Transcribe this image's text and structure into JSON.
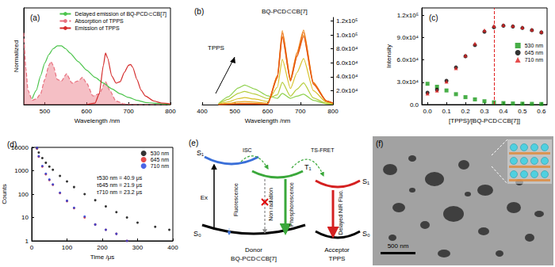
{
  "chart_data": [
    {
      "type": "line",
      "title": "(a)",
      "x_label": "Wavelength /nm",
      "y_label": "Normalized",
      "xlim": [
        450,
        800
      ],
      "xticks": [
        500,
        600,
        700,
        800
      ],
      "ylim": [
        0,
        1.35
      ],
      "tick_labels": "x",
      "legend": "upper right",
      "series": [
        {
          "name": "Delayed emission of BQ-PCD⊂CB[7]",
          "color": "#4cc44c",
          "line_style": "solid",
          "x": [
            470,
            480,
            490,
            500,
            510,
            520,
            530,
            540,
            550,
            560,
            580,
            600,
            620,
            640,
            660,
            680,
            700,
            720,
            740,
            760,
            780,
            800
          ],
          "values": [
            0.08,
            0.2,
            0.4,
            0.58,
            0.7,
            0.78,
            0.82,
            0.82,
            0.78,
            0.72,
            0.6,
            0.48,
            0.38,
            0.3,
            0.22,
            0.15,
            0.1,
            0.06,
            0.03,
            0.02,
            0.01,
            0.0
          ]
        },
        {
          "name": "Absorption of TPPS",
          "type": "area",
          "color": "#e8707e",
          "line_style": "dashed",
          "x": [
            450,
            455,
            460,
            470,
            480,
            490,
            500,
            510,
            515,
            520,
            530,
            540,
            552,
            565,
            580,
            590,
            600,
            615,
            630,
            645,
            655,
            670,
            690,
            720,
            800
          ],
          "values": [
            1.0,
            0.5,
            0.2,
            0.06,
            0.08,
            0.15,
            0.35,
            0.55,
            0.6,
            0.55,
            0.35,
            0.33,
            0.43,
            0.3,
            0.33,
            0.38,
            0.3,
            0.12,
            0.15,
            0.32,
            0.2,
            0.05,
            0.01,
            0,
            0
          ]
        },
        {
          "name": "Emission of TPPS",
          "color": "#d42a2a",
          "line_style": "solid",
          "x": [
            600,
            620,
            630,
            640,
            645,
            650,
            660,
            670,
            680,
            690,
            700,
            705,
            710,
            720,
            730,
            740,
            760,
            780,
            800
          ],
          "values": [
            0,
            0.02,
            0.15,
            0.55,
            0.72,
            0.65,
            0.4,
            0.3,
            0.32,
            0.45,
            0.55,
            0.56,
            0.52,
            0.35,
            0.2,
            0.12,
            0.05,
            0.02,
            0.01
          ]
        }
      ]
    },
    {
      "type": "line",
      "title": "(b)",
      "x_label": "Wavelength /nm",
      "annotations": [
        "BQ-PCD⊂CB[7]",
        "TPPS"
      ],
      "x": [
        450,
        480,
        510,
        530,
        560,
        600,
        630,
        645,
        670,
        690,
        710,
        740,
        780,
        800
      ],
      "xlim": [
        400,
        800
      ],
      "xticks": [
        400,
        500,
        600,
        700,
        800
      ],
      "ylim": [
        0,
        125000
      ],
      "yticks": [
        {
          "value": 20000,
          "label": "2.0x10⁴"
        },
        {
          "value": 40000,
          "label": "4.0x10⁴"
        },
        {
          "value": 60000,
          "label": "6.0x10⁴"
        },
        {
          "value": 80000,
          "label": "8.0x10⁴"
        },
        {
          "value": 100000,
          "label": "1.0x10⁵"
        },
        {
          "value": 120000,
          "label": "1.2x10⁵"
        }
      ],
      "series": [
        {
          "color": "#8fd14f",
          "values": [
            1400,
            11200,
            23800,
            28000,
            22400,
            12600,
            9000,
            16000,
            9000,
            12000,
            15000,
            6000,
            1200,
            500
          ]
        },
        {
          "color": "#b5cc3a",
          "values": [
            950,
            7600,
            16150,
            19000,
            15200,
            8550,
            14000,
            32000,
            12000,
            22000,
            31000,
            9500,
            1600,
            600
          ]
        },
        {
          "color": "#d6c22a",
          "values": [
            500,
            4000,
            8500,
            10000,
            8000,
            4500,
            25000,
            65000,
            23000,
            46000,
            66000,
            20000,
            3300,
            1300
          ]
        },
        {
          "color": "#e8a623",
          "values": [
            225,
            1800,
            3800,
            4500,
            3600,
            2000,
            38000,
            98000,
            34000,
            70000,
            100000,
            30000,
            5000,
            2000
          ]
        },
        {
          "color": "#ee8a1c",
          "values": [
            100,
            800,
            1700,
            2000,
            1600,
            900,
            42000,
            106000,
            37000,
            75000,
            107000,
            32000,
            5400,
            2100
          ]
        },
        {
          "color": "#ec6d18",
          "values": [
            60,
            480,
            1000,
            1200,
            960,
            540,
            41000,
            103000,
            36000,
            73000,
            104000,
            31000,
            5200,
            2000
          ]
        },
        {
          "color": "#e65212",
          "values": [
            40,
            320,
            680,
            800,
            640,
            360,
            39000,
            97000,
            34000,
            69000,
            98000,
            29000,
            4900,
            2000
          ]
        }
      ]
    },
    {
      "type": "scatter",
      "title": "(c)",
      "x_label": "[TPPS]/[BQ-PCD⊂CB[7]]",
      "y_label": "Intensity",
      "x": [
        0,
        0.05,
        0.1,
        0.15,
        0.2,
        0.25,
        0.3,
        0.35,
        0.4,
        0.45,
        0.5,
        0.55,
        0.6
      ],
      "xlim": [
        -0.03,
        0.63
      ],
      "xticks": [
        {
          "value": 0,
          "label": "0.0"
        },
        0.1,
        0.2,
        0.3,
        0.4,
        0.5,
        0.6
      ],
      "ylim": [
        0,
        130000
      ],
      "yticks": [
        {
          "value": 0,
          "label": "0.0"
        },
        {
          "value": 30000,
          "label": "3.0x10⁴"
        },
        {
          "value": 60000,
          "label": "6.0x10⁴"
        },
        {
          "value": 90000,
          "label": "9.0x10⁴"
        },
        {
          "value": 120000,
          "label": "1.2x10⁵"
        }
      ],
      "legend": "right",
      "vline": {
        "x": 0.35,
        "color": "#e02020",
        "line_style": "dashed"
      },
      "series": [
        {
          "name": "530 nm",
          "color": "#1a9a1a",
          "marker": "square",
          "values": [
            28000,
            24000,
            19000,
            14000,
            10000,
            7000,
            4500,
            3000,
            2000,
            1500,
            1200,
            1000,
            800
          ]
        },
        {
          "name": "645 nm",
          "color": "#000000",
          "marker": "circle",
          "values": [
            16000,
            20000,
            32000,
            50000,
            65000,
            80000,
            98000,
            104000,
            106000,
            105000,
            103000,
            100000,
            97000
          ]
        },
        {
          "name": "710 nm",
          "color": "#e02020",
          "marker": "triangle",
          "values": [
            15000,
            19000,
            31000,
            49000,
            66000,
            82000,
            100000,
            106000,
            107000,
            106000,
            104000,
            101000,
            98000
          ]
        }
      ]
    },
    {
      "type": "scatter",
      "title": "(d)",
      "x_label": "Time /μs",
      "y_label": "Counts",
      "log": "y",
      "xlim": [
        0,
        400
      ],
      "xticks": [
        0,
        100,
        200,
        300,
        400
      ],
      "ylim": [
        1,
        10000
      ],
      "yticks": [
        1,
        10,
        100,
        1000,
        10000
      ],
      "legend": "upper right",
      "annotations": [
        "τ530 nm = 40.9 μs",
        "τ645 nm = 21.9 μs",
        "τ710 nm = 23.2 μs"
      ],
      "series": [
        {
          "name": "530 nm",
          "color": "#000000",
          "marker": "circle",
          "x": [
            15,
            20,
            30,
            40,
            50,
            60,
            80,
            100,
            120,
            150,
            180,
            210,
            240,
            270,
            300,
            350,
            390
          ],
          "values": [
            9000,
            6000,
            3500,
            2200,
            1500,
            1100,
            600,
            350,
            200,
            100,
            55,
            30,
            17,
            10,
            6,
            4,
            3
          ]
        },
        {
          "name": "645 nm",
          "color": "#e02020",
          "marker": "circle",
          "x": [
            15,
            20,
            30,
            40,
            50,
            60,
            80,
            100,
            120,
            150,
            180,
            210,
            240,
            270
          ],
          "values": [
            9000,
            4000,
            1500,
            700,
            400,
            250,
            110,
            50,
            25,
            10,
            5,
            3,
            2,
            1
          ]
        },
        {
          "name": "710 nm",
          "color": "#2040e0",
          "marker": "circle",
          "x": [
            15,
            20,
            30,
            40,
            50,
            60,
            80,
            100,
            120,
            150,
            180,
            210,
            240,
            270
          ],
          "values": [
            9500,
            4200,
            1600,
            750,
            420,
            260,
            115,
            52,
            26,
            11,
            5,
            3,
            2,
            1
          ]
        }
      ]
    }
  ],
  "diagram": {
    "label": "(e)",
    "donor": {
      "name": "Donor",
      "compound": "BQ-PCD⊂CB[7]",
      "levels": [
        "S₁",
        "T₁",
        "S₀"
      ]
    },
    "acceptor": {
      "name": "Acceptor",
      "compound": "TPPS",
      "levels": [
        "S₁",
        "S₀"
      ]
    },
    "transitions": {
      "ex": "Ex",
      "fluorescence": "Fluorescence",
      "isc": "ISC",
      "non_radiation": "Non radiation",
      "phosphorescence": "Phosphorescence",
      "fret": "TS-FRET",
      "delayed": "Delayed NIR Fluo."
    }
  },
  "image": {
    "label": "(f)",
    "scale_bar": "500 nm"
  }
}
